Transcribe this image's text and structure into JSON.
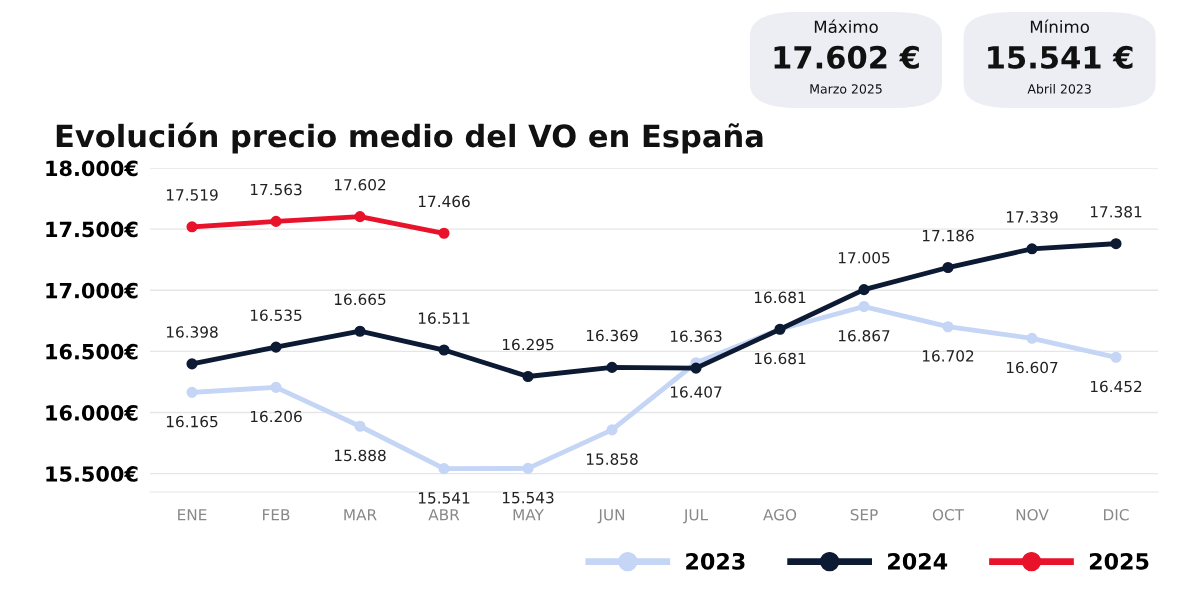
{
  "chart_data": {
    "type": "line",
    "title": "Evolución precio medio del VO en España",
    "annotations": [
      "Máximo",
      "17.602 €",
      "Marzo 2025",
      "Mínimo",
      "15.541 €",
      "Abril 2023"
    ],
    "categories": [
      "ENE",
      "FEB",
      "MAR",
      "ABR",
      "MAY",
      "JUN",
      "JUL",
      "AGO",
      "SEP",
      "OCT",
      "NOV",
      "DIC"
    ],
    "series": [
      {
        "name": "2023",
        "color": "#c5d5f5",
        "values": [
          16165,
          16206,
          15888,
          15541,
          15543,
          15858,
          16407,
          16681,
          16867,
          16702,
          16607,
          16452
        ],
        "value_labels": [
          "16.165",
          "16.206",
          "15.888",
          "15.541",
          "15.543",
          "15.858",
          "16.407",
          "16.681",
          "16.867",
          "16.702",
          "16.607",
          "16.452"
        ]
      },
      {
        "name": "2024",
        "color": "#0d1a33",
        "values": [
          16398,
          16535,
          16665,
          16511,
          16295,
          16369,
          16363,
          16681,
          17005,
          17186,
          17339,
          17381
        ],
        "value_labels": [
          "16.398",
          "16.535",
          "16.665",
          "16.511",
          "16.295",
          "16.369",
          "16.363",
          "16.681",
          "17.005",
          "17.186",
          "17.339",
          "17.381"
        ]
      },
      {
        "name": "2025",
        "color": "#e8132a",
        "values": [
          17519,
          17563,
          17602,
          17466,
          null,
          null,
          null,
          null,
          null,
          null,
          null,
          null
        ],
        "value_labels": [
          "17.519",
          "17.563",
          "17.602",
          "17.466",
          null,
          null,
          null,
          null,
          null,
          null,
          null,
          null
        ]
      }
    ],
    "ylim": [
      15350,
      18000
    ],
    "yticks": [
      {
        "value": 15500,
        "label": "15.500€"
      },
      {
        "value": 16000,
        "label": "16.000€"
      },
      {
        "value": 16500,
        "label": "16.500€"
      },
      {
        "value": 17000,
        "label": "17.000€"
      },
      {
        "value": 17500,
        "label": "17.500€"
      },
      {
        "value": 18000,
        "label": "18.000€"
      }
    ],
    "grid": "y",
    "legend": "bottom right",
    "marker": "circle",
    "line_style": "solid"
  }
}
